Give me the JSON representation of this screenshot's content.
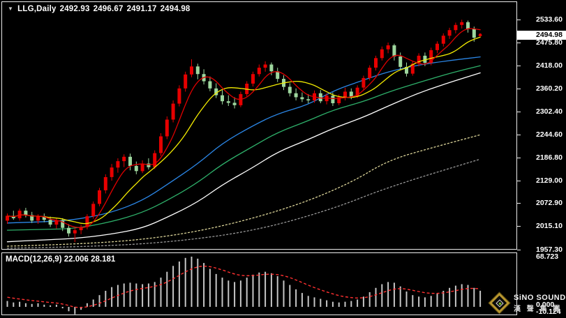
{
  "header": {
    "dropdown_glyph": "▼",
    "symbol": "LLG,Daily",
    "open": "2492.93",
    "high": "2496.67",
    "low": "2491.17",
    "close": "2494.98"
  },
  "price_axis": {
    "labels": [
      "2533.60",
      "2475.80",
      "2418.00",
      "2360.20",
      "2302.40",
      "2244.60",
      "2186.80",
      "2129.00",
      "2072.90",
      "2015.10",
      "1957.30"
    ],
    "current": "2494.98"
  },
  "macd_panel": {
    "label": "MACD(12,26,9) 22.006 28.181"
  },
  "macd_axis": {
    "top": "68.723",
    "zero": "0.000",
    "bottom": "-10.124"
  },
  "logo": {
    "name": "SiNO SOUND",
    "name_cn": "漢 聲 集 團"
  },
  "colors": {
    "background": "#000000",
    "panel_border": "#ececec",
    "up": "#e60000",
    "down": "#9ed79e",
    "ma_red": "#e00000",
    "ma_yellow": "#f2ea00",
    "ma_blue": "#2b86e6",
    "ma_green": "#2eb06a",
    "ma_white": "#ffffff",
    "ma_khaki": "#ddd69a",
    "ma_gray": "#999999",
    "macd_hist": "#c6c6c6",
    "macd_signal": "#ff3030",
    "axis_text": "#ffffff"
  },
  "chart_data": {
    "type": "candlestick",
    "symbol": "LLG",
    "timeframe": "Daily",
    "title": "LLG,Daily 2492.93 2496.67 2491.17 2494.98",
    "price_axis_ticks": [
      2533.6,
      2475.8,
      2418.0,
      2360.2,
      2302.4,
      2244.6,
      2186.8,
      2129.0,
      2072.9,
      2015.1,
      1957.3
    ],
    "price_range": [
      1957.3,
      2533.6
    ],
    "last_ohlc": [
      2492.93,
      2496.67,
      2491.17,
      2494.98
    ],
    "candles": [
      [
        2030,
        2048,
        2022,
        2042
      ],
      [
        2042,
        2055,
        2032,
        2036
      ],
      [
        2036,
        2060,
        2030,
        2055
      ],
      [
        2055,
        2062,
        2038,
        2044
      ],
      [
        2044,
        2052,
        2024,
        2030
      ],
      [
        2030,
        2046,
        2022,
        2041
      ],
      [
        2041,
        2048,
        2026,
        2032
      ],
      [
        2032,
        2040,
        2014,
        2020
      ],
      [
        2020,
        2036,
        2010,
        2031
      ],
      [
        2031,
        2036,
        2004,
        2012
      ],
      [
        2012,
        2021,
        1990,
        1998
      ],
      [
        1998,
        2012,
        1976,
        2006
      ],
      [
        2006,
        2020,
        1996,
        2014
      ],
      [
        2014,
        2046,
        2008,
        2041
      ],
      [
        2041,
        2078,
        2035,
        2072
      ],
      [
        2072,
        2112,
        2066,
        2106
      ],
      [
        2106,
        2146,
        2098,
        2139
      ],
      [
        2139,
        2172,
        2130,
        2163
      ],
      [
        2163,
        2186,
        2150,
        2179
      ],
      [
        2179,
        2196,
        2164,
        2190
      ],
      [
        2190,
        2198,
        2156,
        2167
      ],
      [
        2167,
        2178,
        2146,
        2154
      ],
      [
        2154,
        2181,
        2149,
        2173
      ],
      [
        2173,
        2186,
        2158,
        2164
      ],
      [
        2164,
        2206,
        2159,
        2199
      ],
      [
        2199,
        2249,
        2192,
        2241
      ],
      [
        2241,
        2291,
        2234,
        2283
      ],
      [
        2283,
        2331,
        2276,
        2323
      ],
      [
        2323,
        2369,
        2316,
        2361
      ],
      [
        2361,
        2403,
        2353,
        2396
      ],
      [
        2396,
        2434,
        2389,
        2416
      ],
      [
        2416,
        2423,
        2384,
        2397
      ],
      [
        2397,
        2409,
        2371,
        2379
      ],
      [
        2379,
        2391,
        2354,
        2361
      ],
      [
        2361,
        2374,
        2337,
        2344
      ],
      [
        2344,
        2357,
        2321,
        2329
      ],
      [
        2329,
        2344,
        2317,
        2325
      ],
      [
        2325,
        2339,
        2311,
        2319
      ],
      [
        2319,
        2353,
        2314,
        2347
      ],
      [
        2347,
        2379,
        2341,
        2373
      ],
      [
        2373,
        2403,
        2366,
        2397
      ],
      [
        2397,
        2421,
        2391,
        2413
      ],
      [
        2413,
        2429,
        2403,
        2421
      ],
      [
        2421,
        2426,
        2394,
        2404
      ],
      [
        2404,
        2413,
        2377,
        2385
      ],
      [
        2385,
        2394,
        2357,
        2365
      ],
      [
        2365,
        2374,
        2341,
        2349
      ],
      [
        2349,
        2361,
        2331,
        2339
      ],
      [
        2339,
        2351,
        2327,
        2334
      ],
      [
        2334,
        2347,
        2324,
        2331
      ],
      [
        2331,
        2356,
        2325,
        2349
      ],
      [
        2349,
        2357,
        2324,
        2329
      ],
      [
        2329,
        2349,
        2321,
        2343
      ],
      [
        2343,
        2351,
        2317,
        2324
      ],
      [
        2324,
        2346,
        2319,
        2339
      ],
      [
        2339,
        2363,
        2331,
        2353
      ],
      [
        2353,
        2361,
        2334,
        2341
      ],
      [
        2341,
        2369,
        2337,
        2363
      ],
      [
        2363,
        2393,
        2356,
        2387
      ],
      [
        2387,
        2419,
        2381,
        2413
      ],
      [
        2413,
        2443,
        2406,
        2437
      ],
      [
        2437,
        2466,
        2431,
        2459
      ],
      [
        2459,
        2476,
        2449,
        2469
      ],
      [
        2469,
        2473,
        2431,
        2441
      ],
      [
        2441,
        2451,
        2407,
        2415
      ],
      [
        2415,
        2426,
        2391,
        2398
      ],
      [
        2398,
        2429,
        2393,
        2423
      ],
      [
        2423,
        2449,
        2416,
        2443
      ],
      [
        2443,
        2451,
        2417,
        2425
      ],
      [
        2425,
        2463,
        2419,
        2457
      ],
      [
        2457,
        2479,
        2449,
        2473
      ],
      [
        2473,
        2499,
        2466,
        2493
      ],
      [
        2493,
        2513,
        2485,
        2507
      ],
      [
        2507,
        2526,
        2499,
        2520
      ],
      [
        2520,
        2533,
        2511,
        2527
      ],
      [
        2527,
        2531,
        2501,
        2510
      ],
      [
        2510,
        2516,
        2478,
        2488
      ],
      [
        2492.93,
        2496.67,
        2491.17,
        2494.98
      ]
    ],
    "overlays": [
      {
        "name": "ma-gray",
        "color_key": "ma_gray",
        "dash": "2,3",
        "points": [
          [
            0,
            1961
          ],
          [
            12,
            1964
          ],
          [
            26,
            1975
          ],
          [
            40,
            2003
          ],
          [
            53,
            2059
          ],
          [
            62,
            2114
          ],
          [
            77,
            2184
          ]
        ]
      },
      {
        "name": "ma-khaki",
        "color_key": "ma_khaki",
        "dash": "2,3",
        "points": [
          [
            0,
            1966
          ],
          [
            12,
            1971
          ],
          [
            24,
            1985
          ],
          [
            35,
            2015
          ],
          [
            47,
            2067
          ],
          [
            56,
            2125
          ],
          [
            62,
            2181
          ],
          [
            69,
            2212
          ],
          [
            77,
            2245
          ]
        ]
      },
      {
        "name": "ma-white",
        "color_key": "ma_white",
        "dash": "",
        "points": [
          [
            0,
            1977
          ],
          [
            6,
            1982
          ],
          [
            11,
            1985
          ],
          [
            17,
            1996
          ],
          [
            22,
            2011
          ],
          [
            26,
            2038
          ],
          [
            31,
            2076
          ],
          [
            35,
            2120
          ],
          [
            40,
            2163
          ],
          [
            44,
            2202
          ],
          [
            49,
            2233
          ],
          [
            53,
            2261
          ],
          [
            58,
            2289
          ],
          [
            62,
            2317
          ],
          [
            67,
            2350
          ],
          [
            72,
            2376
          ],
          [
            77,
            2400
          ]
        ]
      },
      {
        "name": "ma-green",
        "color_key": "ma_green",
        "dash": "",
        "points": [
          [
            0,
            2006
          ],
          [
            6,
            2008
          ],
          [
            11,
            2010
          ],
          [
            17,
            2027
          ],
          [
            22,
            2050
          ],
          [
            26,
            2080
          ],
          [
            31,
            2125
          ],
          [
            35,
            2172
          ],
          [
            40,
            2216
          ],
          [
            44,
            2251
          ],
          [
            49,
            2280
          ],
          [
            53,
            2307
          ],
          [
            58,
            2328
          ],
          [
            62,
            2352
          ],
          [
            67,
            2376
          ],
          [
            72,
            2399
          ],
          [
            77,
            2418
          ]
        ]
      },
      {
        "name": "ma-blue",
        "color_key": "ma_blue",
        "dash": "",
        "points": [
          [
            0,
            2024
          ],
          [
            6,
            2027
          ],
          [
            11,
            2032
          ],
          [
            17,
            2050
          ],
          [
            22,
            2080
          ],
          [
            26,
            2120
          ],
          [
            31,
            2172
          ],
          [
            35,
            2224
          ],
          [
            40,
            2268
          ],
          [
            44,
            2298
          ],
          [
            49,
            2320
          ],
          [
            53,
            2355
          ],
          [
            58,
            2382
          ],
          [
            62,
            2403
          ],
          [
            67,
            2420
          ],
          [
            72,
            2431
          ],
          [
            77,
            2440
          ]
        ]
      },
      {
        "name": "ma-yellow",
        "color_key": "ma_yellow",
        "dash": "",
        "sma_period": 10
      },
      {
        "name": "ma-red",
        "color_key": "ma_red",
        "dash": "",
        "sma_period": 5
      }
    ],
    "macd": {
      "label": "MACD(12,26,9)",
      "macd_value": 22.006,
      "signal_value": 28.181,
      "range": [
        -10.124,
        68.723
      ],
      "histogram": [
        8,
        6,
        7,
        5,
        4,
        5,
        3,
        2,
        3,
        -2,
        -6,
        -10.124,
        -4,
        5,
        10,
        16,
        22,
        27,
        30,
        32,
        33,
        32,
        31,
        32,
        34,
        40,
        48,
        56,
        62,
        67,
        68.723,
        66,
        60,
        52,
        45,
        40,
        36,
        34,
        36,
        40,
        44,
        47,
        48,
        46,
        42,
        36,
        30,
        24,
        19,
        15,
        13,
        11,
        9,
        7,
        6,
        7,
        8,
        10,
        14,
        20,
        26,
        31,
        34,
        33,
        28,
        21,
        16,
        14,
        13,
        15,
        18,
        22,
        26,
        29,
        31,
        30,
        26,
        22.006
      ]
    }
  }
}
